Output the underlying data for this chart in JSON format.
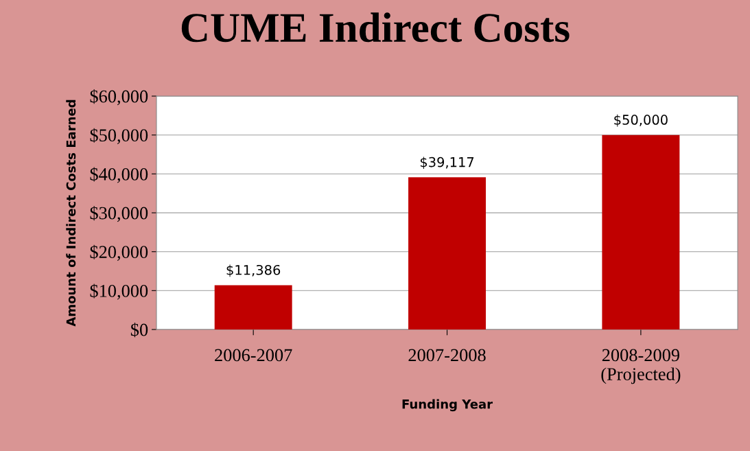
{
  "chart_data": {
    "type": "bar",
    "title": "CUME Indirect Costs",
    "xlabel": "Funding Year",
    "ylabel": "Amount of Indirect Costs Earned",
    "categories": [
      "2006-2007",
      "2007-2008",
      "2008-2009\n(Projected)"
    ],
    "values": [
      11386,
      39117,
      50000
    ],
    "value_labels": [
      "$11,386",
      "$39,117",
      "$50,000"
    ],
    "color": "#c00000",
    "ylim": [
      0,
      60000
    ],
    "yticks": [
      {
        "value": 0,
        "label": "$0"
      },
      {
        "value": 10000,
        "label": "$10,000"
      },
      {
        "value": 20000,
        "label": "$20,000"
      },
      {
        "value": 30000,
        "label": "$30,000"
      },
      {
        "value": 40000,
        "label": "$40,000"
      },
      {
        "value": 50000,
        "label": "$50,000"
      },
      {
        "value": 60000,
        "label": "$60,000"
      }
    ],
    "grid": "y"
  }
}
